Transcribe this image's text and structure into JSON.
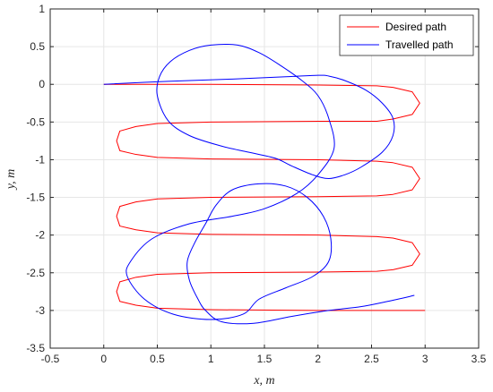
{
  "chart_data": {
    "type": "line",
    "title": "",
    "xlabel": "x, m",
    "ylabel": "y, m",
    "xlim": [
      -0.5,
      3.5
    ],
    "ylim": [
      -3.5,
      1
    ],
    "xticks": [
      "-0.5",
      "0",
      "0.5",
      "1",
      "1.5",
      "2",
      "2.5",
      "3",
      "3.5"
    ],
    "yticks": [
      "1",
      "0.5",
      "0",
      "-0.5",
      "-1",
      "-1.5",
      "-2",
      "-2.5",
      "-3",
      "-3.5"
    ],
    "grid": true,
    "legend_position": "top-right",
    "series": [
      {
        "name": "Desired path",
        "color": "#ff0000",
        "x": [
          0.0,
          1.0,
          2.0,
          2.55,
          2.7,
          2.88,
          2.95,
          2.88,
          2.7,
          2.55,
          2.0,
          1.0,
          0.5,
          0.3,
          0.15,
          0.12,
          0.15,
          0.3,
          0.5,
          1.0,
          2.0,
          2.55,
          2.7,
          2.88,
          2.95,
          2.88,
          2.7,
          2.55,
          2.0,
          1.0,
          0.5,
          0.3,
          0.15,
          0.12,
          0.15,
          0.3,
          0.5,
          1.0,
          2.0,
          2.55,
          2.7,
          2.88,
          2.95,
          2.88,
          2.7,
          2.55,
          2.0,
          1.0,
          0.5,
          0.3,
          0.15,
          0.12,
          0.15,
          0.3,
          0.5,
          1.0,
          2.0,
          3.0
        ],
        "y": [
          0.0,
          0.0,
          -0.01,
          -0.02,
          -0.04,
          -0.1,
          -0.25,
          -0.4,
          -0.46,
          -0.49,
          -0.49,
          -0.5,
          -0.52,
          -0.56,
          -0.62,
          -0.75,
          -0.88,
          -0.93,
          -0.97,
          -0.99,
          -1.0,
          -1.02,
          -1.04,
          -1.1,
          -1.25,
          -1.4,
          -1.46,
          -1.48,
          -1.49,
          -1.5,
          -1.52,
          -1.56,
          -1.62,
          -1.75,
          -1.88,
          -1.93,
          -1.97,
          -1.99,
          -2.0,
          -2.02,
          -2.04,
          -2.1,
          -2.25,
          -2.4,
          -2.46,
          -2.48,
          -2.49,
          -2.5,
          -2.52,
          -2.56,
          -2.62,
          -2.75,
          -2.88,
          -2.93,
          -2.97,
          -2.99,
          -3.0,
          -3.0
        ]
      },
      {
        "name": "Travelled path",
        "color": "#0000ff",
        "x": [
          0.0,
          0.6,
          1.2,
          1.7,
          2.0,
          2.1,
          2.25,
          2.45,
          2.6,
          2.7,
          2.7,
          2.6,
          2.4,
          2.25,
          2.1,
          1.95,
          1.75,
          1.6,
          1.35,
          1.1,
          0.8,
          0.6,
          0.5,
          0.52,
          0.62,
          0.8,
          1.0,
          1.25,
          1.45,
          1.65,
          1.85,
          2.0,
          2.1,
          2.15,
          2.0,
          1.8,
          1.5,
          1.2,
          0.8,
          0.45,
          0.25,
          0.22,
          0.38,
          0.65,
          1.0,
          1.3,
          1.45,
          1.7,
          1.95,
          2.1,
          2.12,
          2.05,
          1.9,
          1.7,
          1.45,
          1.2,
          1.05,
          0.95,
          0.85,
          0.78,
          0.8,
          0.88,
          0.95,
          1.1,
          1.4,
          1.75,
          2.1,
          2.4,
          2.65,
          2.9
        ],
        "y": [
          0.0,
          0.04,
          0.07,
          0.1,
          0.12,
          0.11,
          0.05,
          -0.08,
          -0.25,
          -0.45,
          -0.68,
          -0.9,
          -1.1,
          -1.2,
          -1.25,
          -1.2,
          -1.08,
          -0.98,
          -0.9,
          -0.82,
          -0.68,
          -0.48,
          -0.15,
          0.1,
          0.3,
          0.45,
          0.52,
          0.52,
          0.42,
          0.25,
          0.05,
          -0.15,
          -0.45,
          -0.85,
          -1.2,
          -1.45,
          -1.65,
          -1.75,
          -1.85,
          -2.05,
          -2.35,
          -2.55,
          -2.85,
          -3.05,
          -3.12,
          -3.05,
          -2.85,
          -2.7,
          -2.55,
          -2.35,
          -2.05,
          -1.75,
          -1.5,
          -1.35,
          -1.32,
          -1.4,
          -1.6,
          -1.85,
          -2.1,
          -2.35,
          -2.6,
          -2.85,
          -3.0,
          -3.15,
          -3.17,
          -3.08,
          -3.0,
          -2.95,
          -2.88,
          -2.8
        ]
      }
    ]
  }
}
